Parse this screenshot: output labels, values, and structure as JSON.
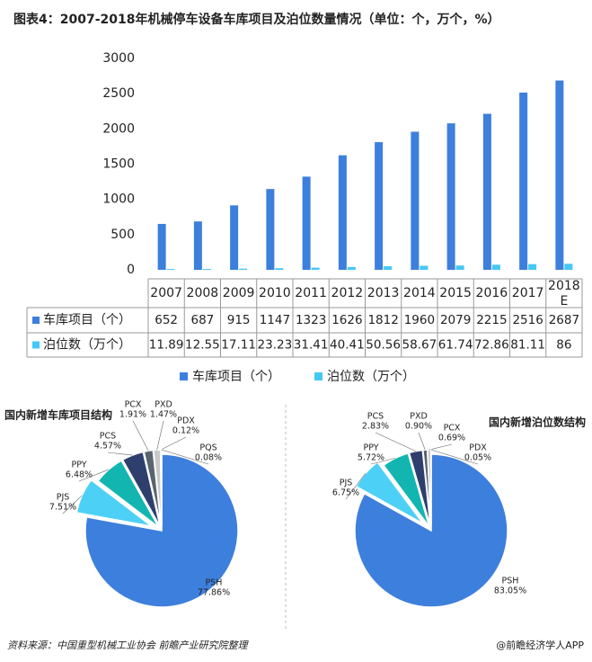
{
  "title": "图表4：2007-2018年机械停车设备车库项目及泊位数量情况（单位：个，万个，%）",
  "chart_data": [
    {
      "type": "bar",
      "categories": [
        "2007",
        "2008",
        "2009",
        "2010",
        "2011",
        "2012",
        "2013",
        "2014",
        "2015",
        "2016",
        "2017",
        "2018E"
      ],
      "series": [
        {
          "name": "车库项目（个）",
          "color": "#3d7fdc",
          "values": [
            652,
            687,
            915,
            1147,
            1323,
            1626,
            1812,
            1960,
            2079,
            2215,
            2516,
            2687
          ]
        },
        {
          "name": "泊位数（万个）",
          "color": "#45c8f5",
          "values": [
            11.89,
            12.55,
            17.11,
            23.23,
            31.41,
            40.41,
            50.56,
            58.67,
            61.74,
            72.86,
            81.11,
            86
          ]
        }
      ],
      "ylim": [
        0,
        3000
      ],
      "yticks": [
        0,
        500,
        1000,
        1500,
        2000,
        2500,
        3000
      ],
      "grid": false,
      "legend": "bottom"
    },
    {
      "type": "pie",
      "title": "国内新增车库项目结构",
      "categories": [
        "PSH",
        "PJS",
        "PPY",
        "PCS",
        "PCX",
        "PXD",
        "PDX",
        "PQS"
      ],
      "values": [
        77.86,
        7.51,
        6.48,
        4.57,
        1.91,
        1.47,
        0.12,
        0.08
      ],
      "value_labels": [
        "77.86%",
        "7.51%",
        "6.48%",
        "4.57%",
        "1.91%",
        "1.47%",
        "0.12%",
        "0.08%"
      ],
      "colors": [
        "#3d7fdc",
        "#4dd0f5",
        "#12b5b0",
        "#2e3f6e",
        "#5a6470",
        "#c8c8c8",
        "#e8e8e8",
        "#f4f4f4"
      ]
    },
    {
      "type": "pie",
      "title": "国内新增泊位数结构",
      "categories": [
        "PSH",
        "PJS",
        "PPY",
        "PCS",
        "PXD",
        "PCX",
        "PDX"
      ],
      "values": [
        83.05,
        6.75,
        5.72,
        2.83,
        0.9,
        0.69,
        0.05
      ],
      "value_labels": [
        "83.05%",
        "6.75%",
        "5.72%",
        "2.83%",
        "0.90%",
        "0.69%",
        "0.05%"
      ],
      "colors": [
        "#3d7fdc",
        "#4dd0f5",
        "#12b5b0",
        "#2e3f6e",
        "#5a6470",
        "#c8c8c8",
        "#eeeeee"
      ]
    }
  ],
  "source": "资料来源：中国重型机械工业协会  前瞻产业研究院整理",
  "credit": "@前瞻经济学人APP"
}
